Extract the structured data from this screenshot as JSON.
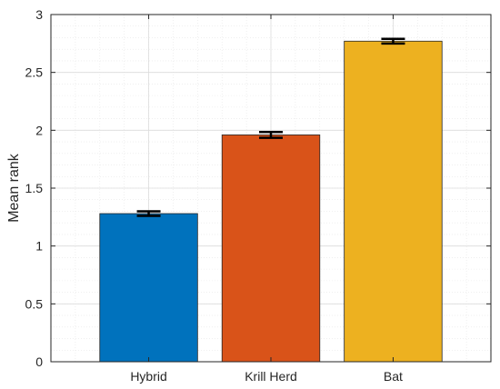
{
  "chart_data": {
    "type": "bar",
    "title": "",
    "xlabel": "",
    "ylabel": "Mean rank",
    "categories": [
      "Hybrid",
      "Krill Herd",
      "Bat"
    ],
    "values": [
      1.28,
      1.96,
      2.77
    ],
    "errors": [
      0.02,
      0.025,
      0.02
    ],
    "colors": [
      "#0072BD",
      "#D95319",
      "#EDB120"
    ],
    "ylim": [
      0,
      3
    ],
    "yticks": [
      "0",
      "0.5",
      "1",
      "1.5",
      "2",
      "2.5",
      "3"
    ],
    "ytick_values": [
      0,
      0.5,
      1,
      1.5,
      2,
      2.5,
      3
    ],
    "grid": true,
    "minor_grid": true
  }
}
